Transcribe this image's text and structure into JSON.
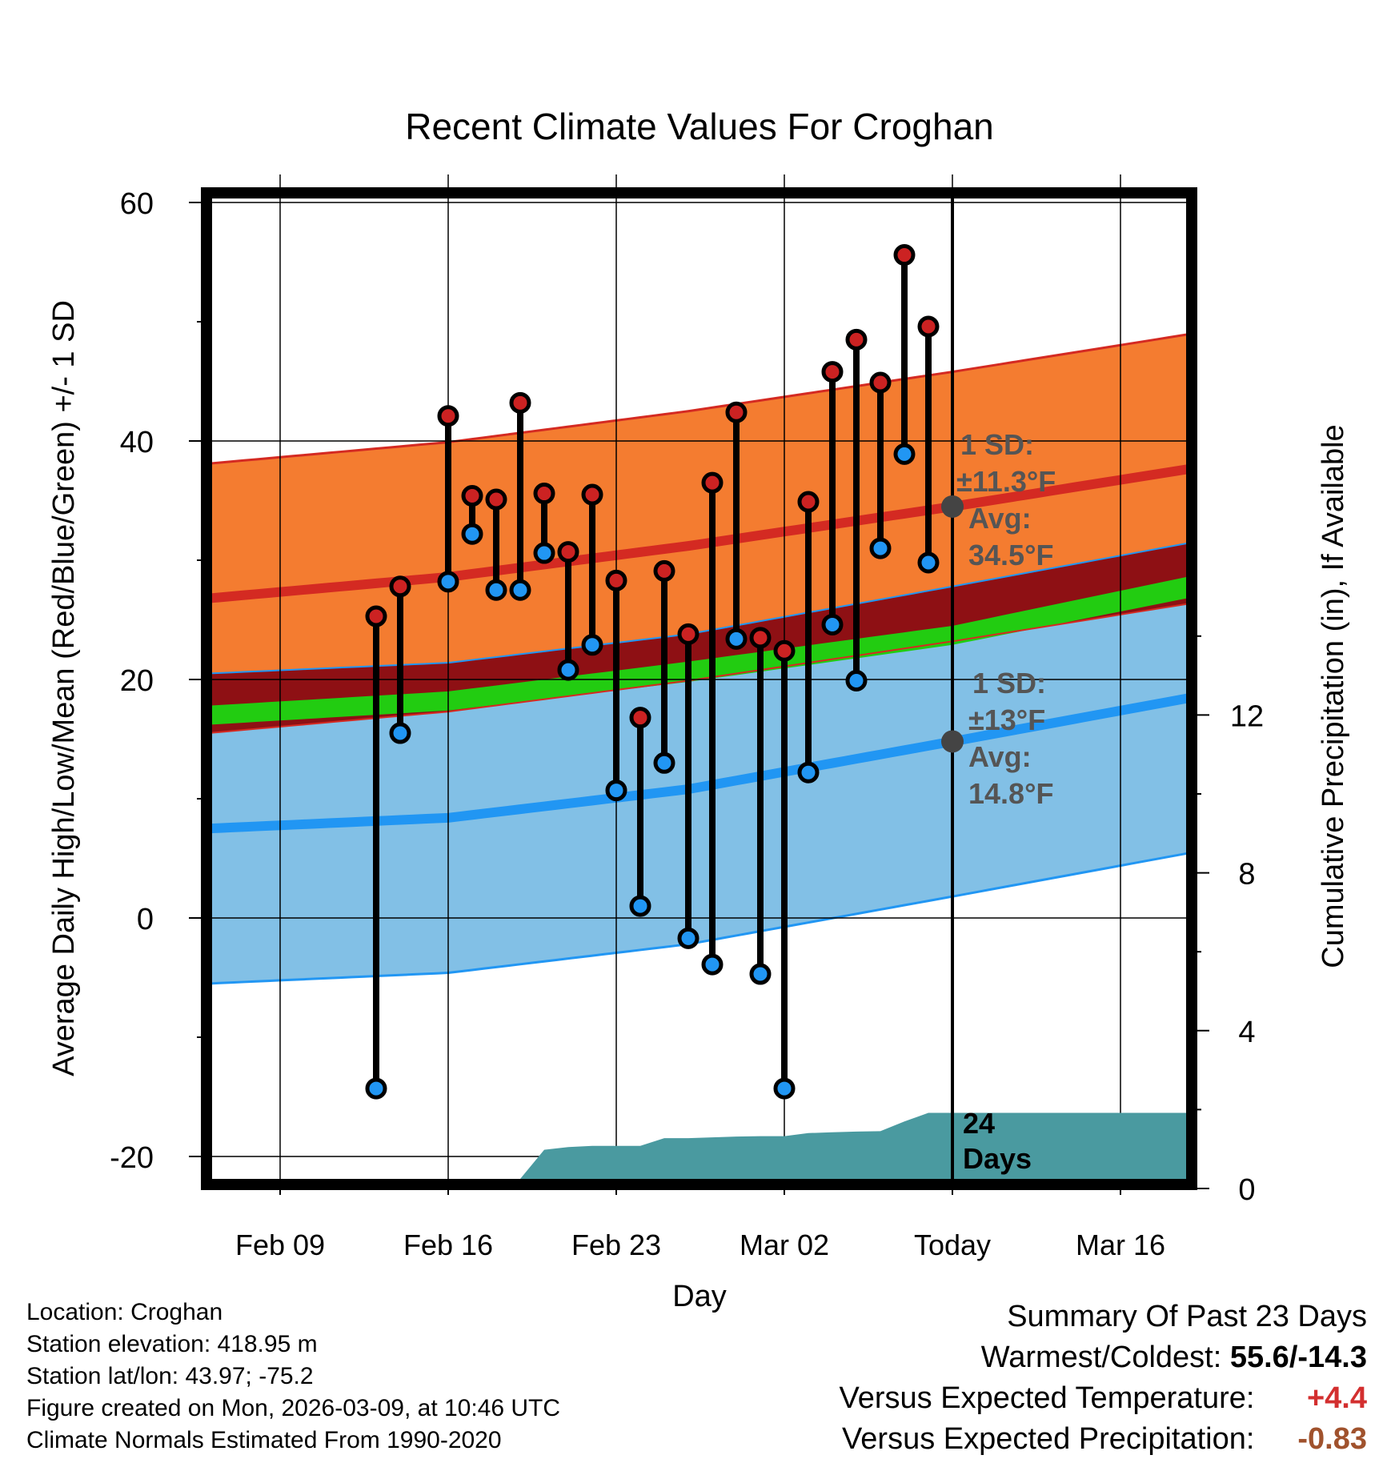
{
  "chart_data": {
    "type": "line",
    "title": "Recent Climate Values For Croghan",
    "xlabel": "Day",
    "ylabel_left": "Average Daily High/Low/Mean (Red/Blue/Green) +/- 1 SD",
    "ylabel_right": "Cumulative Precipitation (in), If Available",
    "ylim_left": [
      -21.5,
      60.5
    ],
    "ylim_right": [
      0,
      25.4
    ],
    "x_range_days": [
      0,
      41
    ],
    "x_ticks": [
      {
        "day": 3,
        "label": "Feb 09"
      },
      {
        "day": 10,
        "label": "Feb 16"
      },
      {
        "day": 17,
        "label": "Feb 23"
      },
      {
        "day": 24,
        "label": "Mar 02"
      },
      {
        "day": 31,
        "label": "Today"
      },
      {
        "day": 38,
        "label": "Mar 16"
      }
    ],
    "y_ticks_left": [
      60,
      40,
      20,
      0,
      -20
    ],
    "y_ticks_right": [
      12,
      8,
      4,
      0
    ],
    "today_day": 31,
    "normals": {
      "days": [
        0,
        10,
        20,
        31,
        41
      ],
      "high_avg": [
        26.8,
        28.6,
        31.2,
        34.5,
        37.7
      ],
      "high_sd": 11.3,
      "low_avg": [
        7.5,
        8.4,
        10.8,
        14.8,
        18.5
      ],
      "low_sd": 13,
      "mean_top": [
        17.8,
        19.0,
        21.5,
        24.5,
        28.7
      ],
      "mean_bottom": [
        16.2,
        17.4,
        19.8,
        22.9,
        26.9
      ]
    },
    "series": [
      {
        "name": "Observed High",
        "color": "#cc2222",
        "days": [
          7,
          8,
          10,
          11,
          12,
          13,
          14,
          15,
          16,
          17,
          18,
          19,
          20,
          21,
          22,
          23,
          24,
          25,
          26,
          27,
          28,
          29,
          30
        ],
        "values": [
          25.3,
          27.8,
          42.1,
          35.4,
          35.1,
          43.2,
          35.6,
          30.7,
          35.5,
          28.3,
          16.8,
          29.1,
          23.8,
          36.5,
          42.4,
          23.5,
          22.4,
          34.9,
          45.8,
          48.5,
          44.9,
          55.6,
          49.6
        ]
      },
      {
        "name": "Observed Low",
        "color": "#2196f3",
        "days": [
          7,
          8,
          10,
          11,
          12,
          13,
          14,
          15,
          16,
          17,
          18,
          19,
          20,
          21,
          22,
          23,
          24,
          25,
          26,
          27,
          28,
          29,
          30
        ],
        "values": [
          -14.3,
          15.5,
          28.2,
          32.2,
          27.5,
          27.5,
          30.6,
          20.8,
          22.9,
          10.7,
          1.0,
          13.0,
          -1.7,
          -3.9,
          23.4,
          -4.7,
          -14.3,
          12.2,
          24.6,
          19.9,
          31.0,
          38.9,
          29.8
        ]
      },
      {
        "name": "Cumulative Precipitation",
        "color": "#4a9aa0",
        "days": [
          13,
          14,
          15,
          16,
          18,
          19,
          20,
          21,
          22,
          23,
          24,
          25,
          26,
          27,
          28,
          29,
          30,
          31,
          41
        ],
        "values": [
          0,
          0.75,
          0.82,
          0.85,
          0.85,
          1.05,
          1.05,
          1.07,
          1.09,
          1.1,
          1.1,
          1.18,
          1.2,
          1.22,
          1.23,
          1.48,
          1.7,
          1.7,
          1.7
        ]
      }
    ],
    "annotations": {
      "high_sd_line1": "1 SD:",
      "high_sd_line2": "±11.3°F",
      "high_avg_line1": "Avg:",
      "high_avg_line2": "34.5°F",
      "low_sd_line1": "1 SD:",
      "low_sd_line2": "±13°F",
      "low_avg_line1": "Avg:",
      "low_avg_line2": "14.8°F",
      "precip_days_line1": "24",
      "precip_days_line2": "Days"
    },
    "colors": {
      "high_band": "#f47c30",
      "high_line": "#d42a22",
      "low_band": "#82c0e6",
      "low_line": "#2196f3",
      "mean_band": "#22cc11",
      "overlap": "#8e1014",
      "precip": "#4a9aa0"
    }
  },
  "footer": {
    "location": "Location: Croghan",
    "elevation": "Station elevation: 418.95 m",
    "latlon": "Station lat/lon: 43.97; -75.2",
    "created": "Figure created on Mon, 2026-03-09, at 10:46 UTC",
    "normals": "Climate Normals Estimated From 1990-2020"
  },
  "summary": {
    "title": "Summary Of Past 23 Days",
    "warm_cold_label": "Warmest/Coldest: ",
    "warm_cold_value": "55.6/-14.3",
    "temp_label": "Versus Expected Temperature:",
    "temp_value": "+4.4",
    "temp_color": "#d32f2f",
    "precip_label": "Versus Expected Precipitation:",
    "precip_value": "-0.83",
    "precip_color": "#a0522d"
  }
}
